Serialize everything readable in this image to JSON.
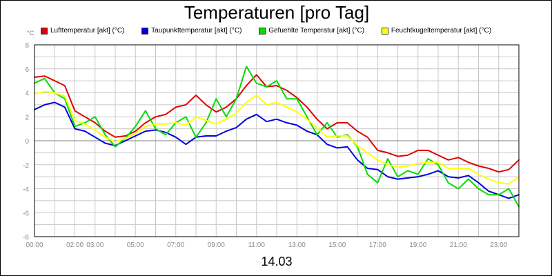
{
  "chart_data": {
    "type": "line",
    "title": "Temperaturen [pro Tag]",
    "date_label": "14.03",
    "unit_label": "°C",
    "grid": true,
    "legend_position": "top",
    "ylim": [
      -8,
      8
    ],
    "xlim": [
      0,
      24
    ],
    "y_ticks": [
      -8,
      -6,
      -4,
      -2,
      0,
      2,
      4,
      6,
      8
    ],
    "x_ticks": [
      {
        "h": 0,
        "label": "00:00"
      },
      {
        "h": 2,
        "label": "02:00"
      },
      {
        "h": 3,
        "label": "03:00"
      },
      {
        "h": 5,
        "label": "05:00"
      },
      {
        "h": 7,
        "label": "07:00"
      },
      {
        "h": 9,
        "label": "09:00"
      },
      {
        "h": 11,
        "label": "11:00"
      },
      {
        "h": 13,
        "label": "13:00"
      },
      {
        "h": 15,
        "label": "15:00"
      },
      {
        "h": 17,
        "label": "17:00"
      },
      {
        "h": 19,
        "label": "19:00"
      },
      {
        "h": 21,
        "label": "21:00"
      },
      {
        "h": 23,
        "label": "23:00"
      }
    ],
    "x_hours": [
      0,
      0.5,
      1,
      1.5,
      2,
      2.5,
      3,
      3.5,
      4,
      4.5,
      5,
      5.5,
      6,
      6.5,
      7,
      7.5,
      8,
      8.5,
      9,
      9.5,
      10,
      10.5,
      11,
      11.5,
      12,
      12.5,
      13,
      13.5,
      14,
      14.5,
      15,
      15.5,
      16,
      16.5,
      17,
      17.5,
      18,
      18.5,
      19,
      19.5,
      20,
      20.5,
      21,
      21.5,
      22,
      22.5,
      23,
      23.5,
      24
    ],
    "series": [
      {
        "name": "Lufttemperatur [akt] (°C)",
        "color": "#e00000",
        "values": [
          5.3,
          5.4,
          5.0,
          4.6,
          2.5,
          2.0,
          1.5,
          0.8,
          0.3,
          0.4,
          0.8,
          1.5,
          2.0,
          2.2,
          2.8,
          3.0,
          3.8,
          3.0,
          2.4,
          2.8,
          3.5,
          4.6,
          5.5,
          4.5,
          4.6,
          4.2,
          3.6,
          2.8,
          1.8,
          1.0,
          1.5,
          1.5,
          0.8,
          0.3,
          -0.8,
          -1.0,
          -1.3,
          -1.2,
          -0.8,
          -0.8,
          -1.2,
          -1.6,
          -1.4,
          -1.8,
          -2.1,
          -2.3,
          -2.6,
          -2.4,
          -1.6
        ]
      },
      {
        "name": "Taupunkttemperatur [akt] (°C)",
        "color": "#0000dd",
        "values": [
          2.6,
          3.0,
          3.2,
          2.8,
          1.0,
          0.8,
          0.3,
          -0.2,
          -0.4,
          0.0,
          0.4,
          0.8,
          0.9,
          0.7,
          0.3,
          -0.3,
          0.3,
          0.4,
          0.4,
          0.8,
          1.1,
          1.8,
          2.2,
          1.6,
          1.8,
          1.5,
          1.3,
          0.8,
          0.5,
          -0.3,
          -0.6,
          -0.5,
          -1.6,
          -2.3,
          -2.4,
          -3.0,
          -3.2,
          -3.1,
          -3.0,
          -2.8,
          -2.5,
          -3.0,
          -3.1,
          -2.9,
          -3.5,
          -4.2,
          -4.5,
          -4.8,
          -4.5
        ]
      },
      {
        "name": "Gefuehlte Temperatur [akt] (°C)",
        "color": "#00dd00",
        "values": [
          4.8,
          5.2,
          4.0,
          3.5,
          1.2,
          1.5,
          2.0,
          0.5,
          -0.5,
          0.2,
          1.2,
          2.5,
          1.0,
          0.5,
          1.5,
          2.0,
          0.3,
          1.5,
          3.5,
          2.0,
          3.5,
          6.2,
          4.8,
          4.5,
          5.0,
          3.5,
          3.5,
          2.0,
          0.5,
          1.5,
          0.3,
          0.5,
          -0.5,
          -2.8,
          -3.5,
          -1.5,
          -3.0,
          -2.5,
          -2.8,
          -1.5,
          -2.0,
          -3.5,
          -4.0,
          -3.2,
          -4.0,
          -4.5,
          -4.5,
          -4.0,
          -5.5
        ]
      },
      {
        "name": "Feuchtkugeltemperatur [akt] (°C)",
        "color": "#ffff00",
        "values": [
          3.9,
          4.1,
          4.0,
          3.7,
          1.7,
          1.4,
          0.9,
          0.3,
          -0.1,
          0.2,
          0.6,
          1.2,
          1.4,
          1.4,
          1.5,
          1.3,
          2.0,
          1.7,
          1.4,
          1.8,
          2.3,
          3.2,
          3.8,
          3.0,
          3.2,
          2.8,
          2.4,
          1.8,
          1.1,
          0.3,
          0.4,
          0.4,
          -0.4,
          -1.0,
          -1.6,
          -2.0,
          -2.2,
          -2.1,
          -1.9,
          -1.8,
          -1.8,
          -2.3,
          -2.3,
          -2.3,
          -2.8,
          -3.2,
          -3.5,
          -3.6,
          -3.0
        ]
      }
    ]
  },
  "colors": {
    "grid": "#c8c8c8",
    "zero_line": "#999999",
    "axis_text": "#8a8a8a"
  }
}
